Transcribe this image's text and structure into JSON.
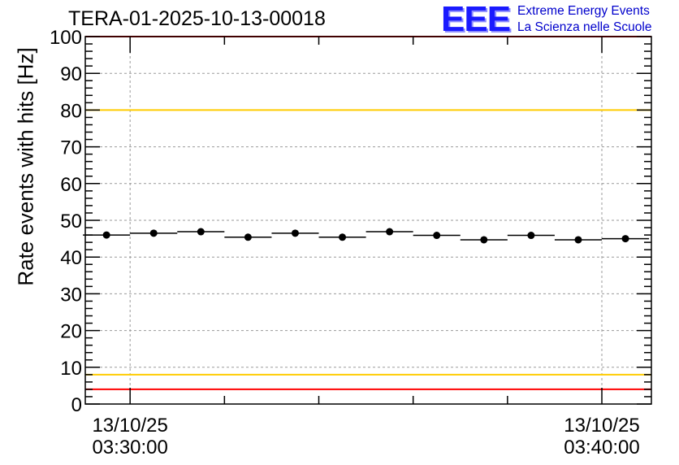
{
  "chart_data": {
    "type": "scatter",
    "title": "TERA-01-2025-10-13-00018",
    "ylabel": "Rate events with hits [Hz]",
    "xlabel": "",
    "ylim": [
      0,
      100
    ],
    "yticks": [
      0,
      10,
      20,
      30,
      40,
      50,
      60,
      70,
      80,
      90,
      100
    ],
    "xlim_minutes": [
      -0.95,
      11.05
    ],
    "xticks": [
      {
        "minute": 0,
        "date": "13/10/25",
        "time": "03:30:00"
      },
      {
        "minute": 10,
        "date": "13/10/25",
        "time": "03:40:00"
      }
    ],
    "minor_x_step_minutes": 2,
    "grid": true,
    "bin_width_minutes": 1,
    "points": [
      {
        "x": -0.5,
        "y": 46.0
      },
      {
        "x": 0.5,
        "y": 46.5
      },
      {
        "x": 1.5,
        "y": 46.9
      },
      {
        "x": 2.5,
        "y": 45.4
      },
      {
        "x": 3.5,
        "y": 46.5
      },
      {
        "x": 4.5,
        "y": 45.4
      },
      {
        "x": 5.5,
        "y": 46.9
      },
      {
        "x": 6.5,
        "y": 45.9
      },
      {
        "x": 7.5,
        "y": 44.7
      },
      {
        "x": 8.5,
        "y": 45.9
      },
      {
        "x": 9.5,
        "y": 44.7
      },
      {
        "x": 10.5,
        "y": 45.0
      }
    ],
    "reference_lines": [
      {
        "y": 100,
        "color": "#ff0000"
      },
      {
        "y": 80,
        "color": "#ffcc00"
      },
      {
        "y": 8,
        "color": "#ffcc00"
      },
      {
        "y": 4,
        "color": "#ff0000"
      }
    ]
  },
  "logo": {
    "mark": "EEE",
    "line1": "Extreme Energy Events",
    "line2": "La Scienza nelle Scuole"
  }
}
